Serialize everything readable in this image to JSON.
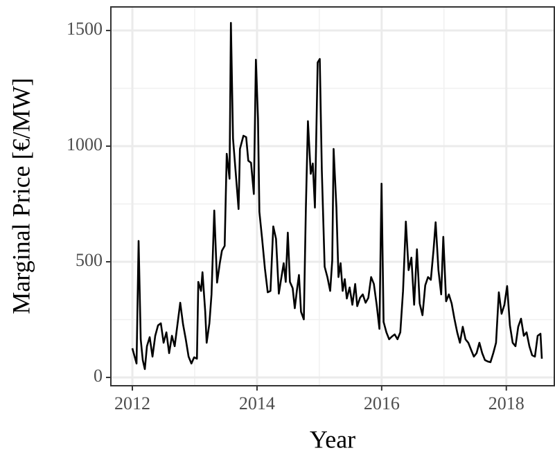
{
  "chart_data": {
    "type": "line",
    "x_label": "Year",
    "y_label": "Marginal Price [€/MW]",
    "xlim": [
      2011.655,
      2018.77
    ],
    "ylim": [
      -36,
      1602
    ],
    "xticks": [
      2012,
      2014,
      2016,
      2018
    ],
    "yticks": [
      0,
      500,
      1000,
      1500
    ],
    "grid": true,
    "series": [
      {
        "color": "#000000",
        "x": [
          2012.0,
          2012.067,
          2012.1,
          2012.134,
          2012.167,
          2012.2,
          2012.234,
          2012.278,
          2012.323,
          2012.367,
          2012.412,
          2012.457,
          2012.501,
          2012.546,
          2012.59,
          2012.635,
          2012.679,
          2012.724,
          2012.768,
          2012.813,
          2012.857,
          2012.902,
          2012.947,
          2012.991,
          2013.036,
          2013.058,
          2013.102,
          2013.125,
          2013.169,
          2013.192,
          2013.236,
          2013.27,
          2013.314,
          2013.359,
          2013.403,
          2013.437,
          2013.481,
          2013.514,
          2013.559,
          2013.581,
          2013.615,
          2013.659,
          2013.704,
          2013.726,
          2013.782,
          2013.826,
          2013.86,
          2013.904,
          2013.949,
          2013.982,
          2014.016,
          2014.038,
          2014.082,
          2014.127,
          2014.172,
          2014.216,
          2014.261,
          2014.305,
          2014.35,
          2014.383,
          2014.428,
          2014.461,
          2014.494,
          2014.528,
          2014.572,
          2014.606,
          2014.639,
          2014.673,
          2014.706,
          2014.751,
          2014.784,
          2014.817,
          2014.862,
          2014.895,
          2014.929,
          2014.973,
          2015.007,
          2015.04,
          2015.085,
          2015.129,
          2015.174,
          2015.207,
          2015.229,
          2015.274,
          2015.307,
          2015.341,
          2015.374,
          2015.408,
          2015.441,
          2015.486,
          2015.53,
          2015.575,
          2015.608,
          2015.653,
          2015.697,
          2015.742,
          2015.786,
          2015.831,
          2015.875,
          2015.92,
          2015.964,
          2015.998,
          2016.031,
          2016.076,
          2016.12,
          2016.165,
          2016.209,
          2016.254,
          2016.299,
          2016.343,
          2016.388,
          2016.432,
          2016.477,
          2016.521,
          2016.566,
          2016.61,
          2016.655,
          2016.699,
          2016.744,
          2016.789,
          2016.833,
          2016.866,
          2016.911,
          2016.955,
          2016.989,
          2017.034,
          2017.078,
          2017.123,
          2017.167,
          2017.212,
          2017.256,
          2017.301,
          2017.345,
          2017.39,
          2017.434,
          2017.479,
          2017.523,
          2017.568,
          2017.613,
          2017.657,
          2017.702,
          2017.746,
          2017.791,
          2017.835,
          2017.88,
          2017.924,
          2017.969,
          2018.013,
          2018.058,
          2018.102,
          2018.147,
          2018.191,
          2018.236,
          2018.281,
          2018.325,
          2018.37,
          2018.414,
          2018.459,
          2018.503,
          2018.548,
          2018.57
        ],
        "values": [
          126,
          60,
          590,
          165,
          75,
          36,
          135,
          174,
          90,
          180,
          225,
          234,
          150,
          195,
          105,
          180,
          135,
          230,
          323,
          230,
          165,
          90,
          60,
          87,
          81,
          413,
          374,
          455,
          284,
          150,
          234,
          359,
          722,
          410,
          494,
          548,
          569,
          967,
          859,
          1533,
          1033,
          883,
          728,
          988,
          1045,
          1039,
          937,
          928,
          793,
          1374,
          1117,
          716,
          599,
          470,
          368,
          374,
          653,
          599,
          362,
          419,
          494,
          413,
          626,
          413,
          386,
          299,
          374,
          443,
          284,
          251,
          734,
          1108,
          880,
          925,
          734,
          1362,
          1377,
          895,
          479,
          434,
          374,
          506,
          988,
          734,
          434,
          494,
          374,
          425,
          341,
          389,
          314,
          404,
          308,
          344,
          359,
          323,
          344,
          434,
          404,
          314,
          210,
          838,
          240,
          195,
          165,
          177,
          186,
          165,
          195,
          374,
          674,
          464,
          518,
          314,
          554,
          320,
          269,
          398,
          434,
          422,
          554,
          671,
          464,
          359,
          608,
          329,
          359,
          320,
          254,
          195,
          150,
          219,
          165,
          150,
          120,
          90,
          105,
          150,
          105,
          75,
          69,
          66,
          105,
          150,
          368,
          275,
          314,
          395,
          225,
          150,
          135,
          219,
          254,
          180,
          195,
          135,
          96,
          90,
          180,
          189,
          81
        ]
      }
    ]
  }
}
